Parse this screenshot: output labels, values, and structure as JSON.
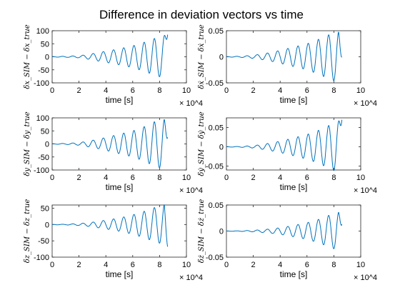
{
  "figure": {
    "title": "Difference in deviation vectors vs time",
    "line_color": "#0072BD"
  },
  "chart_data": [
    {
      "type": "line",
      "xlabel": "time [s]",
      "ylabel": "δx_SIM − δx_true",
      "xlim": [
        0,
        100000
      ],
      "ylim": [
        -100,
        100
      ],
      "x_ticks": [
        "0",
        "2",
        "4",
        "6",
        "8",
        "10"
      ],
      "x_exponent": "× 10^4",
      "y_ticks": [
        "100",
        "50",
        "0",
        "-50",
        "-100"
      ],
      "y_tick_values": [
        100,
        50,
        0,
        -50,
        -100
      ],
      "x": [
        0,
        10000,
        20000,
        28000,
        36000,
        44000,
        52000,
        60000,
        68000,
        76000,
        82000,
        86000
      ],
      "amplitude": [
        1,
        2,
        4,
        10,
        18,
        25,
        33,
        42,
        55,
        70,
        80,
        85
      ],
      "series": [
        {
          "end_value": 85
        }
      ]
    },
    {
      "type": "line",
      "xlabel": "time [s]",
      "ylabel": "δẋ_SIM − δẋ_true",
      "xlim": [
        0,
        100000
      ],
      "ylim": [
        -0.05,
        0.05
      ],
      "x_ticks": [
        "0",
        "2",
        "4",
        "6",
        "8",
        "10"
      ],
      "x_exponent": "× 10^4",
      "y_ticks": [
        "0.05",
        "0",
        "-0.05"
      ],
      "y_tick_values": [
        0.05,
        0,
        -0.05
      ],
      "x": [
        0,
        10000,
        20000,
        28000,
        36000,
        44000,
        52000,
        60000,
        68000,
        76000,
        82000,
        86000
      ],
      "amplitude": [
        0.0005,
        0.001,
        0.003,
        0.006,
        0.01,
        0.015,
        0.02,
        0.025,
        0.033,
        0.042,
        0.048,
        0.05
      ],
      "series": [
        {
          "end_value": 0
        }
      ]
    },
    {
      "type": "line",
      "xlabel": "time [s]",
      "ylabel": "δy_SIM − δy_true",
      "xlim": [
        0,
        100000
      ],
      "ylim": [
        -100,
        100
      ],
      "x_ticks": [
        "0",
        "2",
        "4",
        "6",
        "8",
        "10"
      ],
      "x_exponent": "× 10^4",
      "y_ticks": [
        "100",
        "50",
        "0",
        "-50",
        "-100"
      ],
      "y_tick_values": [
        100,
        50,
        0,
        -50,
        -100
      ],
      "x": [
        0,
        10000,
        20000,
        28000,
        36000,
        44000,
        52000,
        60000,
        68000,
        76000,
        82000,
        86000
      ],
      "amplitude": [
        1,
        2,
        5,
        12,
        20,
        30,
        40,
        50,
        65,
        85,
        95,
        98
      ],
      "series": [
        {
          "end_value": 25
        }
      ]
    },
    {
      "type": "line",
      "xlabel": "time [s]",
      "ylabel": "δẏ_SIM − δẏ_true",
      "xlim": [
        0,
        100000
      ],
      "ylim": [
        -0.06,
        0.075
      ],
      "x_ticks": [
        "0",
        "2",
        "4",
        "6",
        "8",
        "10"
      ],
      "x_exponent": "× 10^4",
      "y_ticks": [
        "0.05",
        "0",
        "-0.05"
      ],
      "y_tick_values": [
        0.05,
        0,
        -0.05
      ],
      "x": [
        0,
        10000,
        20000,
        28000,
        36000,
        44000,
        52000,
        60000,
        68000,
        76000,
        82000,
        86000
      ],
      "amplitude": [
        0.0005,
        0.001,
        0.003,
        0.007,
        0.012,
        0.018,
        0.025,
        0.032,
        0.042,
        0.055,
        0.065,
        0.07
      ],
      "series": [
        {
          "end_value": 0.07
        }
      ]
    },
    {
      "type": "line",
      "xlabel": "time [s]",
      "ylabel": "δz_SIM − δz_true",
      "xlim": [
        0,
        100000
      ],
      "ylim": [
        -100,
        60
      ],
      "x_ticks": [
        "0",
        "2",
        "4",
        "6",
        "8",
        "10"
      ],
      "x_exponent": "× 10^4",
      "y_ticks": [
        "50",
        "0",
        "-50",
        "-100"
      ],
      "y_tick_values": [
        50,
        0,
        -50,
        -100
      ],
      "x": [
        0,
        10000,
        20000,
        28000,
        36000,
        44000,
        52000,
        60000,
        68000,
        76000,
        82000,
        86000
      ],
      "amplitude": [
        0.5,
        1,
        3,
        6,
        11,
        16,
        22,
        30,
        40,
        52,
        60,
        68
      ],
      "series": [
        {
          "end_value": -68
        }
      ]
    },
    {
      "type": "line",
      "xlabel": "time [s]",
      "ylabel": "δż_SIM − δż_true",
      "xlim": [
        0,
        100000
      ],
      "ylim": [
        -0.05,
        0.05
      ],
      "x_ticks": [
        "0",
        "2",
        "4",
        "6",
        "8",
        "10"
      ],
      "x_exponent": "× 10^4",
      "y_ticks": [
        "0.05",
        "0",
        "-0.05"
      ],
      "y_tick_values": [
        0.05,
        0,
        -0.05
      ],
      "x": [
        0,
        10000,
        20000,
        28000,
        36000,
        44000,
        52000,
        60000,
        68000,
        76000,
        82000,
        86000
      ],
      "amplitude": [
        0.0002,
        0.0005,
        0.0015,
        0.003,
        0.005,
        0.008,
        0.012,
        0.016,
        0.022,
        0.03,
        0.036,
        0.038
      ],
      "series": [
        {
          "end_value": 0.013
        }
      ]
    }
  ]
}
